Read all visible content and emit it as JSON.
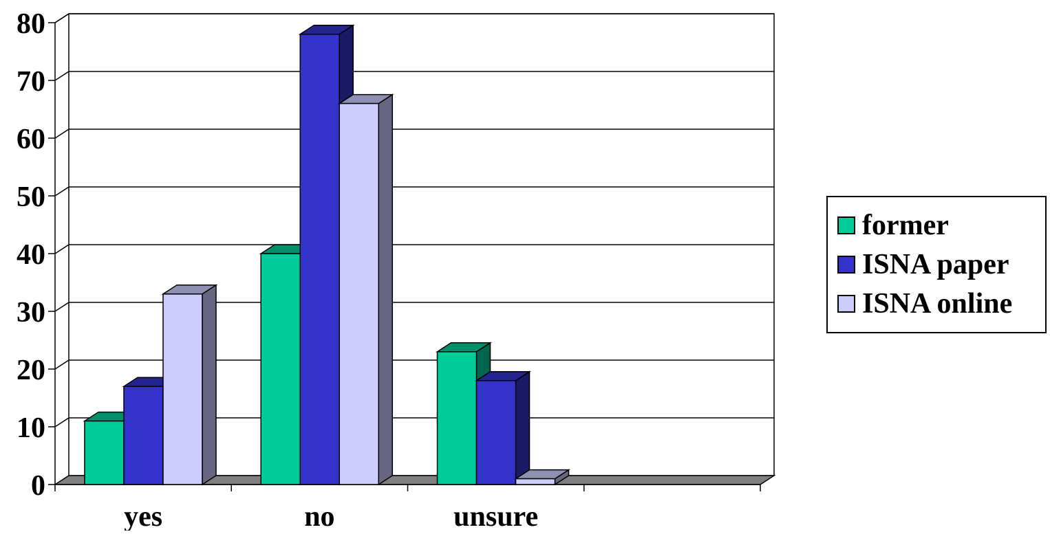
{
  "chart_data": {
    "type": "bar",
    "style": "3d-clustered-column",
    "categories": [
      "yes",
      "no",
      "unsure",
      ""
    ],
    "series": [
      {
        "name": "former",
        "color": "#00CC99",
        "values": [
          11,
          40,
          23,
          null
        ]
      },
      {
        "name": "ISNA paper",
        "color": "#3333CC",
        "values": [
          17,
          78,
          18,
          null
        ]
      },
      {
        "name": "ISNA online",
        "color": "#CCCCFF",
        "values": [
          33,
          66,
          1,
          null
        ]
      }
    ],
    "ylim": [
      0,
      80
    ],
    "yticks": [
      "0",
      "10",
      "20",
      "30",
      "40",
      "50",
      "60",
      "70",
      "80"
    ],
    "grid": true,
    "legend_position": "right"
  }
}
